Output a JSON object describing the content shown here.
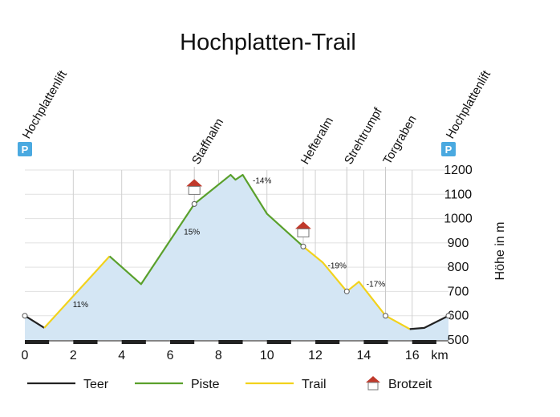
{
  "chart_data": {
    "type": "area",
    "title": "Hochplatten-Trail",
    "xlabel": "km",
    "ylabel": "Höhe in m",
    "xlim": [
      0,
      17.5
    ],
    "ylim": [
      500,
      1200
    ],
    "x_ticks": [
      0,
      2,
      4,
      6,
      8,
      10,
      12,
      14,
      16
    ],
    "y_ticks": [
      500,
      600,
      700,
      800,
      900,
      1000,
      1100,
      1200
    ],
    "grid": "vertical",
    "fill_color": "#d4e6f4",
    "segments": [
      {
        "name": "Teer",
        "color": "#222222",
        "points": [
          [
            0,
            600
          ],
          [
            0.8,
            550
          ]
        ]
      },
      {
        "name": "Trail",
        "color": "#f2d21c",
        "points": [
          [
            0.8,
            550
          ],
          [
            3.5,
            845
          ]
        ]
      },
      {
        "name": "Piste",
        "color": "#5aa02c",
        "points": [
          [
            3.5,
            845
          ],
          [
            4.8,
            730
          ],
          [
            7.0,
            1060
          ],
          [
            8.5,
            1180
          ],
          [
            8.7,
            1160
          ],
          [
            9.0,
            1180
          ],
          [
            10.0,
            1020
          ],
          [
            11.5,
            885
          ]
        ]
      },
      {
        "name": "Trail",
        "color": "#f2d21c",
        "points": [
          [
            11.5,
            885
          ],
          [
            12.3,
            820
          ],
          [
            13.3,
            700
          ],
          [
            13.8,
            740
          ],
          [
            14.9,
            600
          ],
          [
            15.9,
            545
          ]
        ]
      },
      {
        "name": "Teer",
        "color": "#222222",
        "points": [
          [
            15.9,
            545
          ],
          [
            16.5,
            550
          ],
          [
            17.5,
            600
          ]
        ]
      }
    ],
    "waypoints": [
      {
        "label": "Hochplattenlift",
        "x": 0,
        "y": 600,
        "parking": true
      },
      {
        "label": "Staffnalm",
        "x": 7.0,
        "y": 1060,
        "hut": true
      },
      {
        "label": "Hefteralm",
        "x": 11.5,
        "y": 885,
        "hut": true
      },
      {
        "label": "Strehtrumpf",
        "x": 13.3,
        "y": 700
      },
      {
        "label": "Torgraben",
        "x": 14.9,
        "y": 600
      },
      {
        "label": "Hochplattenlift",
        "x": 17.5,
        "y": 600,
        "parking": true
      }
    ],
    "annotations": [
      {
        "text": "11%",
        "x": 2.3,
        "y": 635
      },
      {
        "text": "15%",
        "x": 6.9,
        "y": 935
      },
      {
        "text": "-14%",
        "x": 9.8,
        "y": 1145
      },
      {
        "text": "-19%",
        "x": 12.9,
        "y": 795
      },
      {
        "text": "-17%",
        "x": 14.5,
        "y": 720
      }
    ],
    "legend": [
      {
        "label": "Teer",
        "color": "#222222",
        "type": "line"
      },
      {
        "label": "Piste",
        "color": "#5aa02c",
        "type": "line"
      },
      {
        "label": "Trail",
        "color": "#f2d21c",
        "type": "line"
      },
      {
        "label": "Brotzeit",
        "color": "#c0392b",
        "type": "hut"
      }
    ],
    "parking_symbol": "P",
    "parking_color": "#4aa9e0"
  }
}
